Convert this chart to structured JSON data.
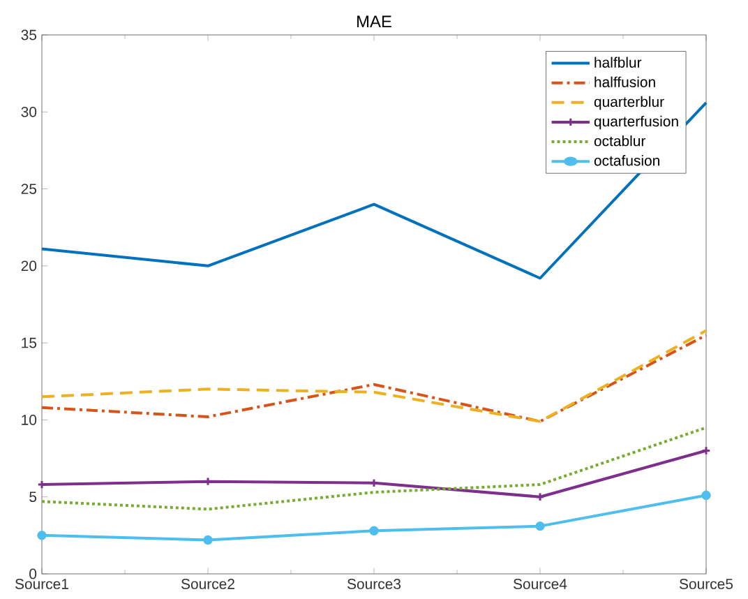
{
  "chart_data": {
    "type": "line",
    "title": "MAE",
    "categories": [
      "Source1",
      "Source2",
      "Source3",
      "Source4",
      "Source5"
    ],
    "ylim": [
      0,
      35
    ],
    "yticks": [
      0,
      5,
      10,
      15,
      20,
      25,
      30,
      35
    ],
    "legend": "top right",
    "grid": false,
    "series": [
      {
        "name": "halfblur",
        "color": "#0072bd",
        "line_style": "solid",
        "marker": "none",
        "values": [
          21.1,
          20.0,
          24.0,
          19.2,
          30.6
        ]
      },
      {
        "name": "halffusion",
        "color": "#d95319",
        "line_style": "dashdot",
        "marker": "none",
        "values": [
          10.8,
          10.2,
          12.3,
          9.9,
          15.5
        ]
      },
      {
        "name": "quarterblur",
        "color": "#edb120",
        "line_style": "dashed",
        "marker": "none",
        "values": [
          11.5,
          12.0,
          11.8,
          9.9,
          15.8
        ]
      },
      {
        "name": "quarterfusion",
        "color": "#7e2f8e",
        "line_style": "solid",
        "marker": "cross",
        "values": [
          5.8,
          6.0,
          5.9,
          5.0,
          8.0
        ]
      },
      {
        "name": "octablur",
        "color": "#77ac30",
        "line_style": "dotted",
        "marker": "none",
        "values": [
          4.7,
          4.2,
          5.3,
          5.8,
          9.5
        ]
      },
      {
        "name": "octafusion",
        "color": "#4dbeee",
        "line_style": "solid",
        "marker": "circle",
        "values": [
          2.5,
          2.2,
          2.8,
          3.1,
          5.1
        ]
      }
    ]
  }
}
